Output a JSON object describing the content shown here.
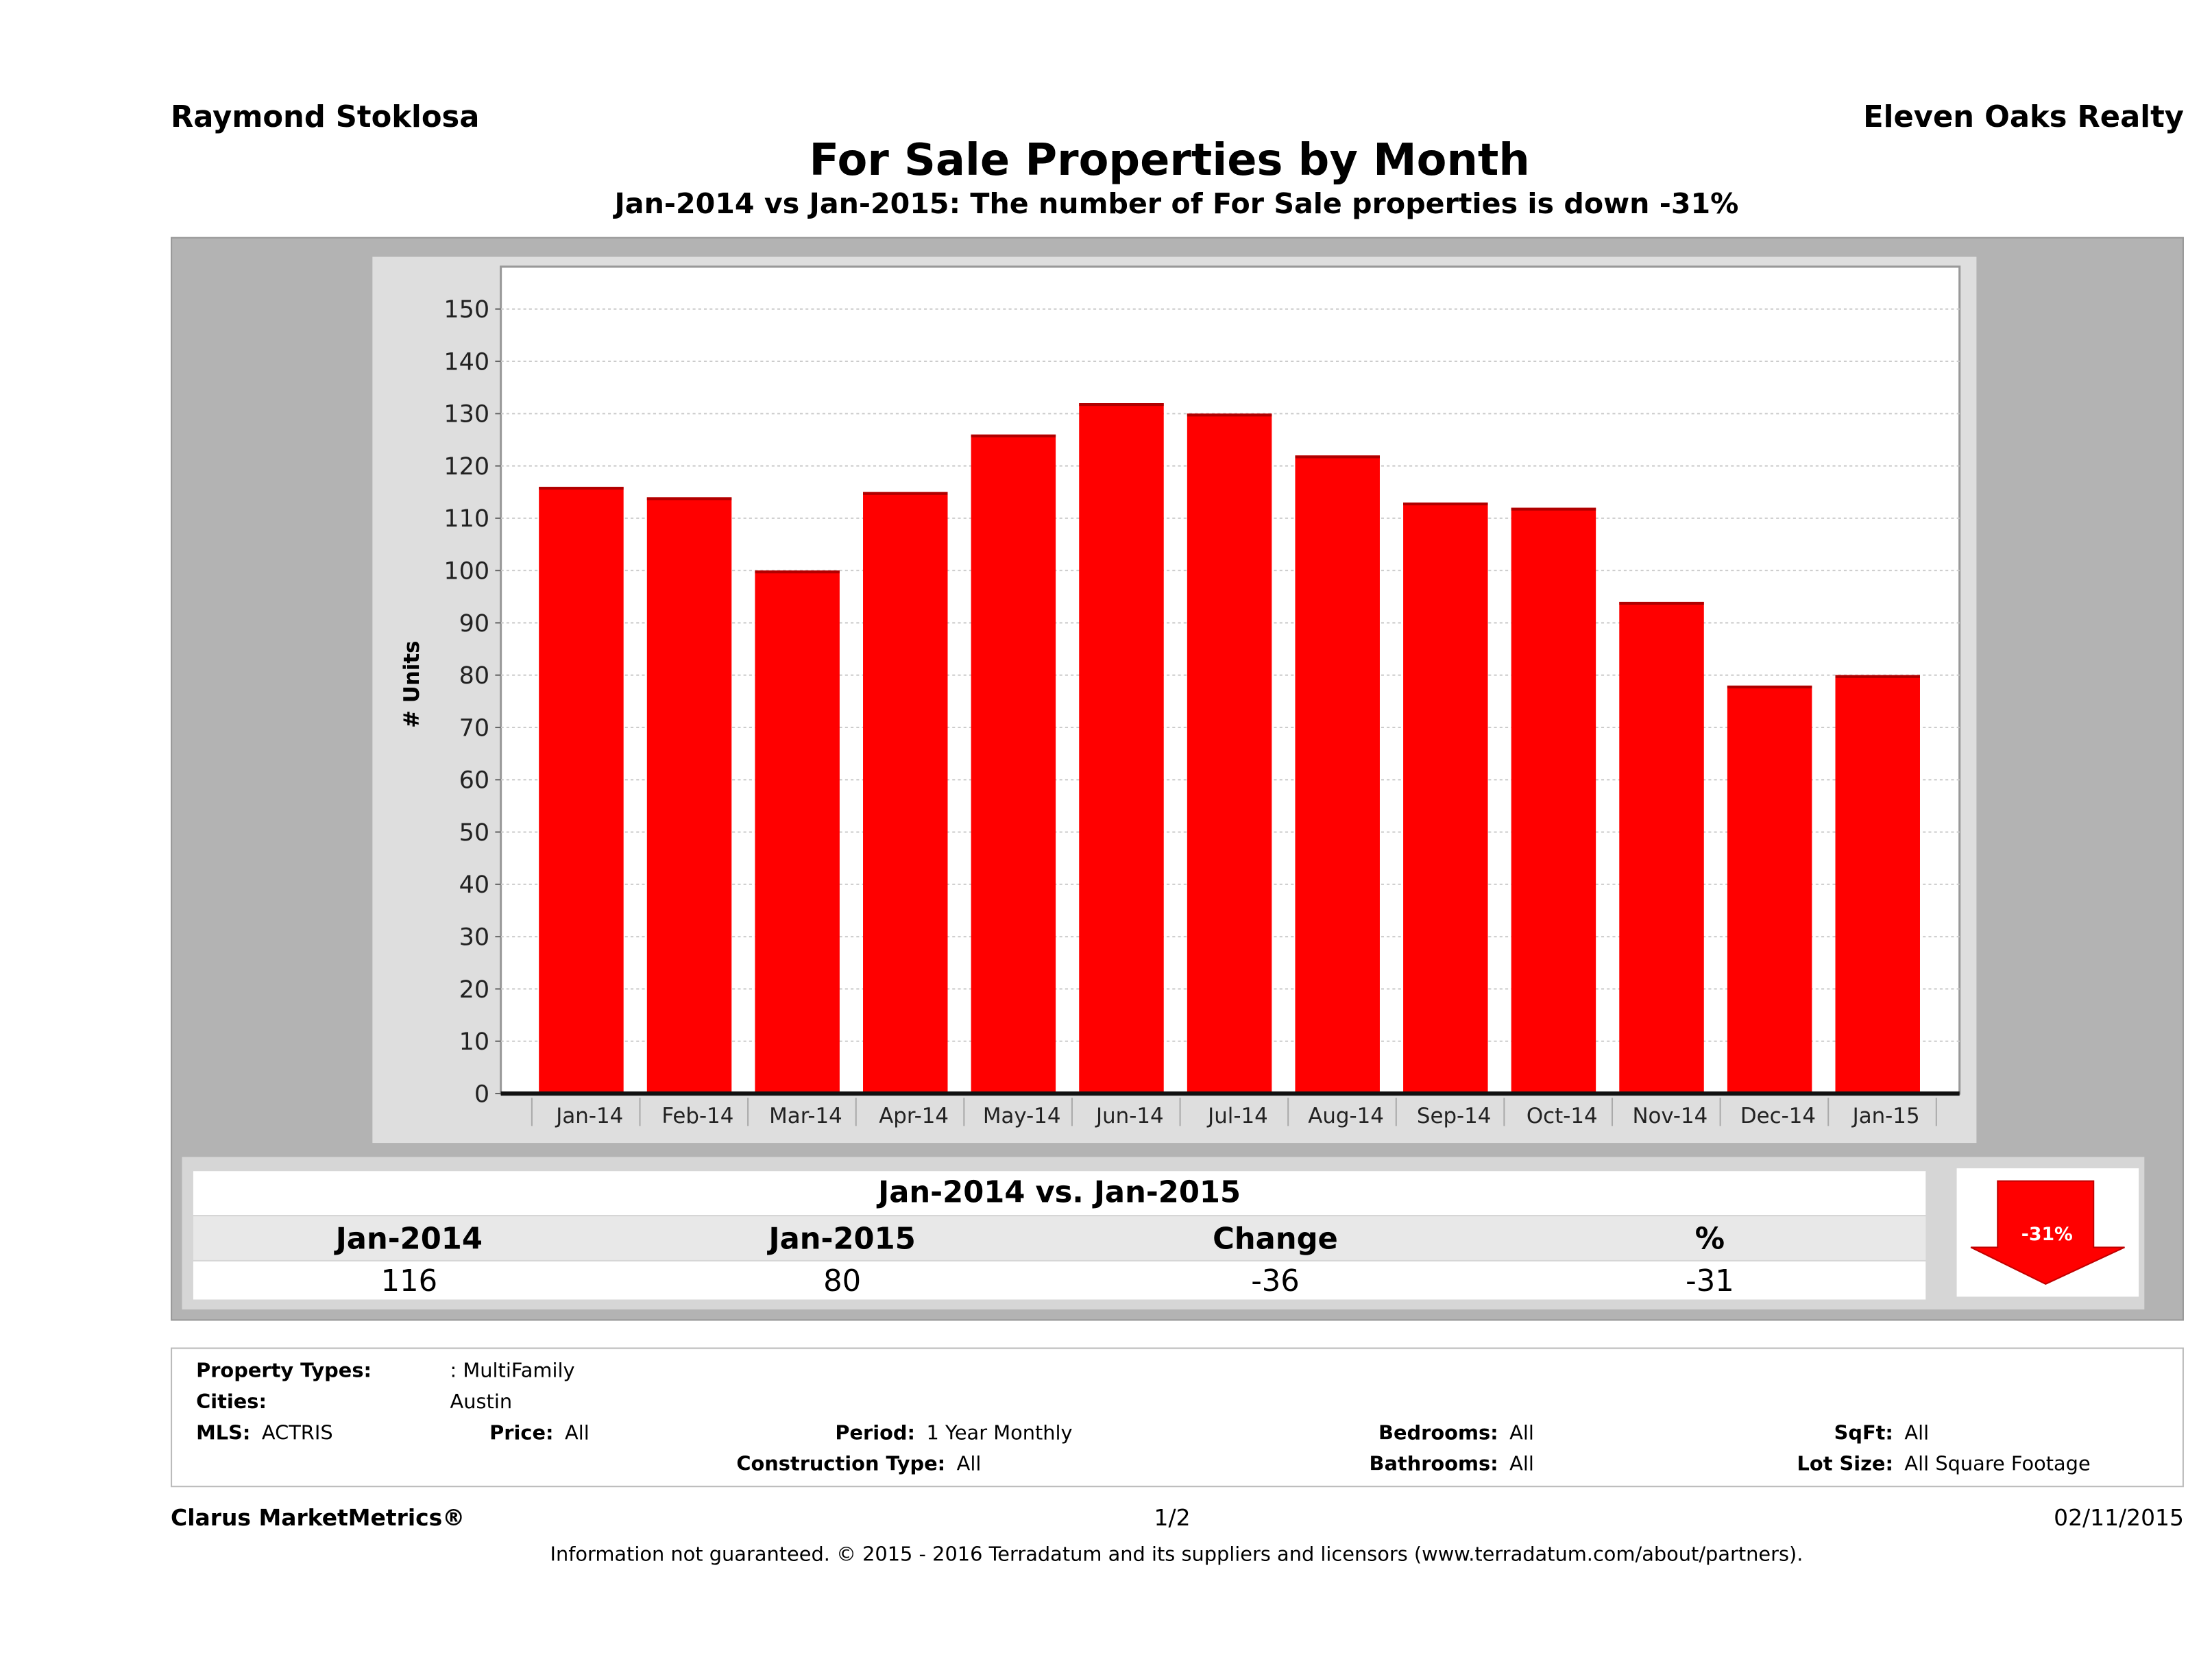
{
  "header": {
    "agent": "Raymond Stoklosa",
    "brokerage": "Eleven Oaks Realty",
    "title": "For Sale Properties by Month",
    "subtitle": "Jan-2014 vs Jan-2015: The number of For Sale  properties is down -31%"
  },
  "chart_data": {
    "type": "bar",
    "title": "For Sale Properties by Month",
    "xlabel": "",
    "ylabel": "# Units",
    "categories": [
      "Jan-14",
      "Feb-14",
      "Mar-14",
      "Apr-14",
      "May-14",
      "Jun-14",
      "Jul-14",
      "Aug-14",
      "Sep-14",
      "Oct-14",
      "Nov-14",
      "Dec-14",
      "Jan-15"
    ],
    "values": [
      116,
      114,
      100,
      115,
      126,
      132,
      130,
      122,
      113,
      112,
      94,
      78,
      80
    ],
    "ylim": [
      0,
      150
    ],
    "yticks": [
      0,
      10,
      20,
      30,
      40,
      50,
      60,
      70,
      80,
      90,
      100,
      110,
      120,
      130,
      140,
      150
    ],
    "grid": true,
    "bar_color": "#ff0000"
  },
  "summary": {
    "title": "Jan-2014 vs. Jan-2015",
    "headers": [
      "Jan-2014",
      "Jan-2015",
      "Change",
      "%"
    ],
    "values": [
      "116",
      "80",
      "-36",
      "-31"
    ],
    "badge": "-31%",
    "badge_icon": "down-arrow-icon",
    "badge_color": "#ff0000"
  },
  "filters": {
    "property_types_label": "Property Types:",
    "property_types_value": ": MultiFamily",
    "cities_label": "Cities:",
    "cities_value": "Austin",
    "mls_label": "MLS:",
    "mls_value": "ACTRIS",
    "price_label": "Price:",
    "price_value": "All",
    "period_label": "Period:",
    "period_value": "1 Year Monthly",
    "construction_label": "Construction Type:",
    "construction_value": "All",
    "bedrooms_label": "Bedrooms:",
    "bedrooms_value": "All",
    "bathrooms_label": "Bathrooms:",
    "bathrooms_value": "All",
    "sqft_label": "SqFt:",
    "sqft_value": "All",
    "lotsize_label": "Lot Size:",
    "lotsize_value": "All Square Footage"
  },
  "footer": {
    "product": "Clarus MarketMetrics®",
    "page": "1/2",
    "date": "02/11/2015",
    "disclaimer": "Information not guaranteed. © 2015 - 2016 Terradatum and its suppliers and licensors (www.terradatum.com/about/partners)."
  }
}
